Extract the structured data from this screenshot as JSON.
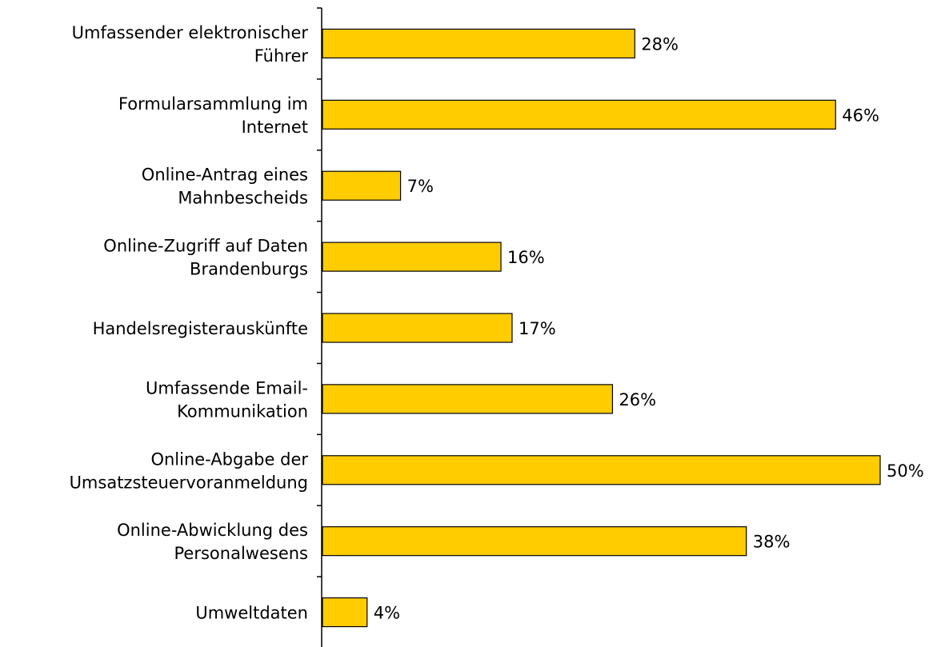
{
  "chart_data": {
    "type": "bar",
    "orientation": "horizontal",
    "categories": [
      "Umfassender elektronischer\nFührer",
      "Formularsammlung im\nInternet",
      "Online-Antrag eines\nMahnbescheids",
      "Online-Zugriff auf Daten\nBrandenburgs",
      "Handelsregisterauskünfte",
      "Umfassende Email-\nKommunikation",
      "Online-Abgabe der\nUmsatzsteuervoranmeldung",
      "Online-Abwicklung des\nPersonalwesens",
      "Umweltdaten"
    ],
    "values": [
      28,
      46,
      7,
      16,
      17,
      26,
      50,
      38,
      4
    ],
    "value_labels": [
      "28%",
      "46%",
      "7%",
      "16%",
      "17%",
      "26%",
      "50%",
      "38%",
      "4%"
    ],
    "color": "#ffcc00"
  }
}
